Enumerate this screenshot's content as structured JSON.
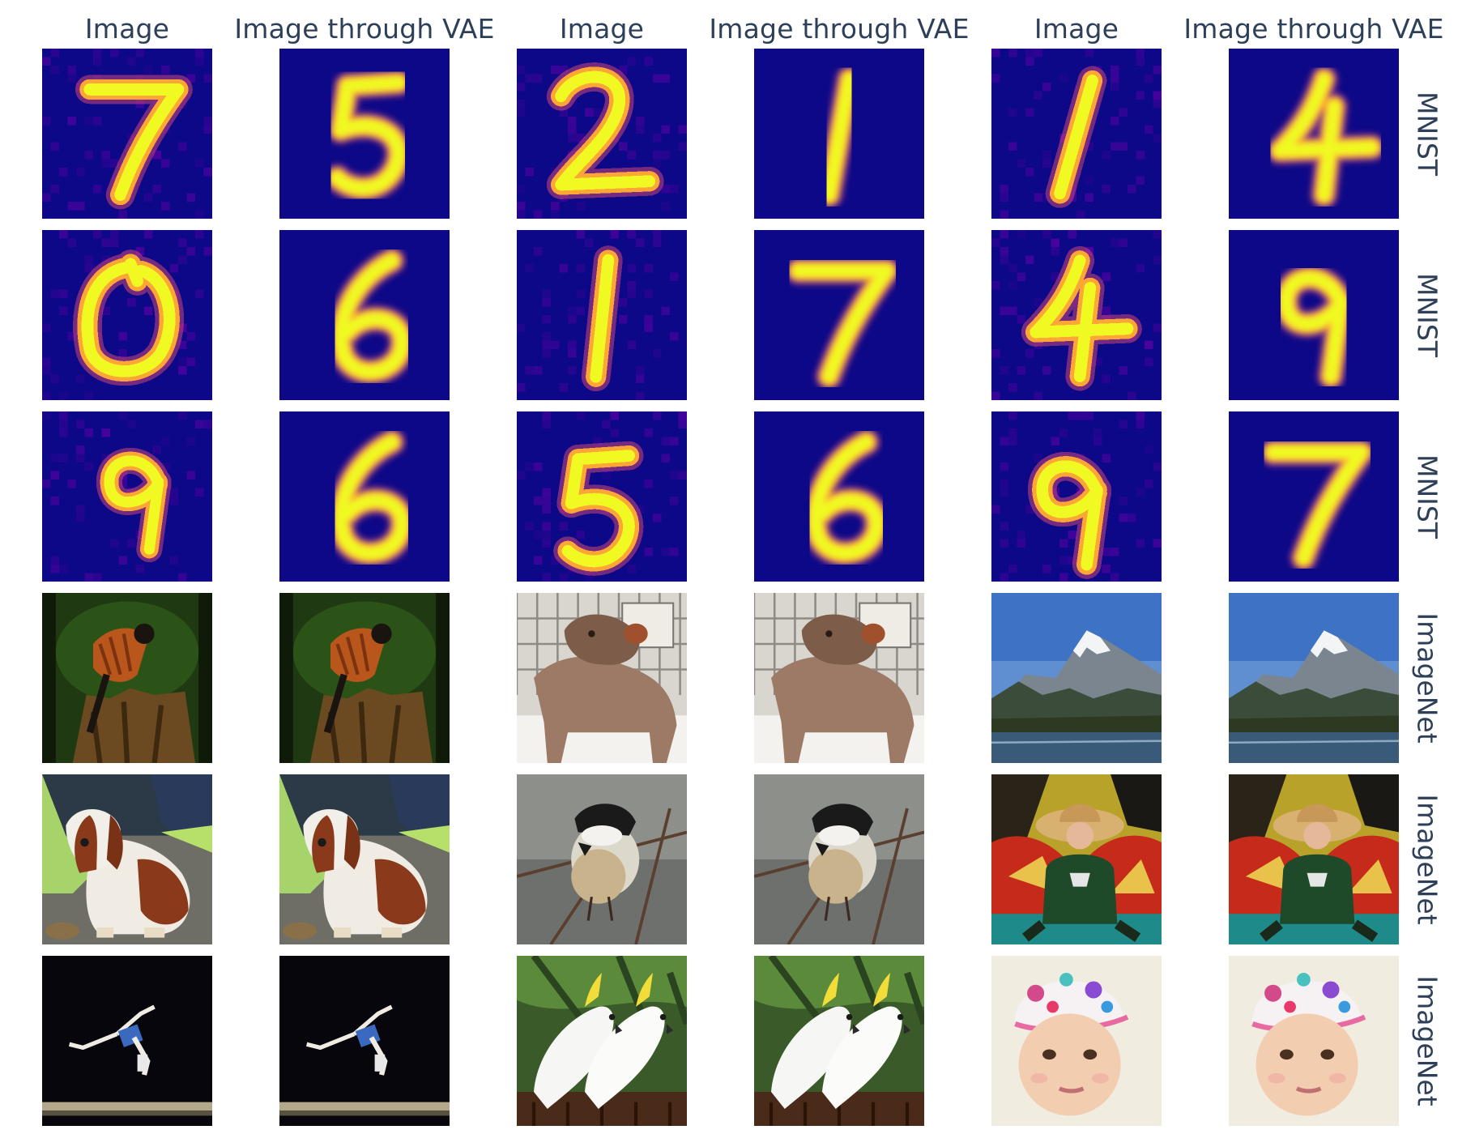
{
  "column_titles": [
    "Image",
    "Image through VAE",
    "Image",
    "Image through VAE",
    "Image",
    "Image through VAE"
  ],
  "row_labels": [
    "MNIST",
    "MNIST",
    "MNIST",
    "ImageNet",
    "ImageNet",
    "ImageNet"
  ],
  "tiles": [
    [
      {
        "kind": "digit",
        "digit": "7"
      },
      {
        "kind": "digit",
        "digit": "5"
      },
      {
        "kind": "digit",
        "digit": "2"
      },
      {
        "kind": "digit",
        "digit": "1"
      },
      {
        "kind": "digit",
        "digit": "1"
      },
      {
        "kind": "digit",
        "digit": "4"
      }
    ],
    [
      {
        "kind": "digit",
        "digit": "0"
      },
      {
        "kind": "digit",
        "digit": "6"
      },
      {
        "kind": "digit",
        "digit": "1"
      },
      {
        "kind": "digit",
        "digit": "7"
      },
      {
        "kind": "digit",
        "digit": "4"
      },
      {
        "kind": "digit",
        "digit": "9"
      }
    ],
    [
      {
        "kind": "digit",
        "digit": "9"
      },
      {
        "kind": "digit",
        "digit": "6"
      },
      {
        "kind": "digit",
        "digit": "5"
      },
      {
        "kind": "digit",
        "digit": "6"
      },
      {
        "kind": "digit",
        "digit": "9"
      },
      {
        "kind": "digit",
        "digit": "7"
      }
    ],
    [
      {
        "kind": "photo",
        "subject": "bird on stump"
      },
      {
        "kind": "photo",
        "subject": "bird on stump"
      },
      {
        "kind": "photo",
        "subject": "brown dog"
      },
      {
        "kind": "photo",
        "subject": "brown dog"
      },
      {
        "kind": "photo",
        "subject": "snowy mountain"
      },
      {
        "kind": "photo",
        "subject": "snowy mountain"
      }
    ],
    [
      {
        "kind": "photo",
        "subject": "spaniel dog"
      },
      {
        "kind": "photo",
        "subject": "spaniel dog"
      },
      {
        "kind": "photo",
        "subject": "chickadee"
      },
      {
        "kind": "photo",
        "subject": "chickadee"
      },
      {
        "kind": "photo",
        "subject": "boy in sombrero"
      },
      {
        "kind": "photo",
        "subject": "boy in sombrero"
      }
    ],
    [
      {
        "kind": "photo",
        "subject": "gymnast on beam"
      },
      {
        "kind": "photo",
        "subject": "gymnast on beam"
      },
      {
        "kind": "photo",
        "subject": "cockatoos"
      },
      {
        "kind": "photo",
        "subject": "cockatoos"
      },
      {
        "kind": "photo",
        "subject": "child with floral cap"
      },
      {
        "kind": "photo",
        "subject": "child with floral cap"
      }
    ]
  ],
  "colors": {
    "text": "#2e3f5a",
    "digit_background": "#0d0887",
    "digit_stroke_core": "#f0f921",
    "digit_stroke_mid": "#fca636",
    "digit_stroke_edge": "#cc4778",
    "digit_noise": "#5c01a6"
  }
}
